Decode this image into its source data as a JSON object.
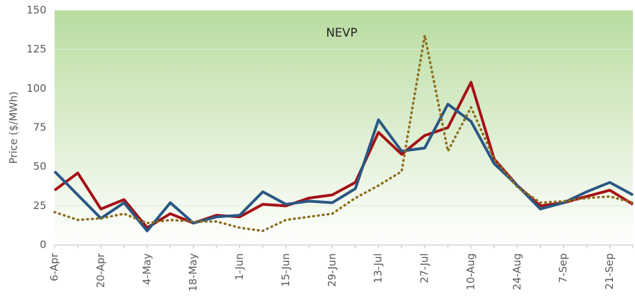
{
  "chart_data": {
    "type": "line",
    "title": "NEVP",
    "ylabel": "Price ($/MWh)",
    "categories": [
      "6-Apr",
      null,
      "20-Apr",
      null,
      "4-May",
      null,
      "18-May",
      null,
      "1-Jun",
      null,
      "15-Jun",
      null,
      "29-Jun",
      null,
      "13-Jul",
      null,
      "27-Jul",
      null,
      "10-Aug",
      null,
      "24-Aug",
      null,
      "7-Sep",
      null,
      "21-Sep",
      null
    ],
    "series": [
      {
        "color": "#a50f15",
        "style": "solid",
        "values": [
          35,
          46,
          23,
          29,
          11,
          20,
          14,
          19,
          18,
          26,
          25,
          30,
          32,
          40,
          72,
          58,
          70,
          75,
          104,
          55,
          38,
          25,
          27,
          31,
          35,
          26
        ]
      },
      {
        "color": "#2a5783",
        "style": "solid",
        "values": [
          47,
          32,
          17,
          27,
          9,
          27,
          14,
          18,
          19,
          34,
          26,
          28,
          27,
          36,
          80,
          60,
          62,
          90,
          79,
          52,
          38,
          23,
          27,
          34,
          40,
          32
        ]
      },
      {
        "color": "#8c6d1f",
        "style": "dotted",
        "values": [
          21,
          16,
          17,
          20,
          14,
          16,
          15,
          15,
          11,
          9,
          16,
          18,
          20,
          30,
          38,
          47,
          134,
          60,
          88,
          55,
          37,
          27,
          28,
          30,
          31,
          27
        ]
      }
    ],
    "ylim": [
      0,
      150
    ],
    "yticks": [
      0,
      25,
      50,
      75,
      100,
      125,
      150
    ],
    "grid": true
  }
}
